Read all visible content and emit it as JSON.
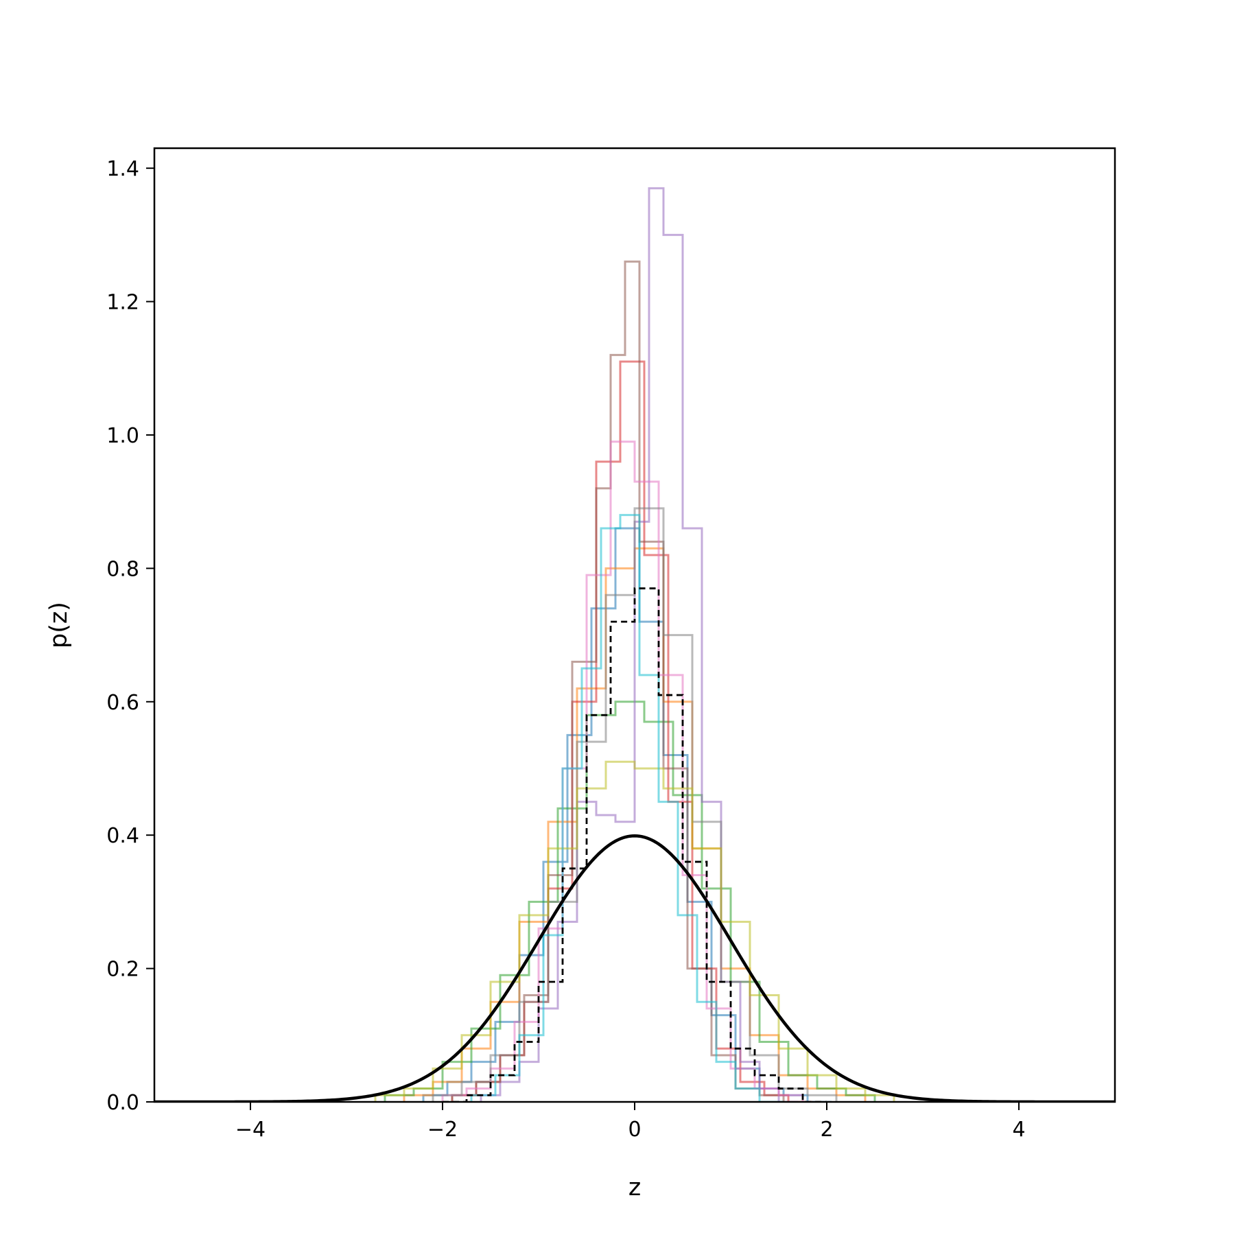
{
  "chart_data": {
    "type": "histogram",
    "title": "",
    "xlabel": "z",
    "ylabel": "p(z)",
    "xlim": [
      -5,
      5
    ],
    "ylim": [
      0,
      1.43
    ],
    "xticks": [
      -4,
      -2,
      0,
      2,
      4
    ],
    "xtick_labels": [
      "−4",
      "−2",
      "0",
      "2",
      "4"
    ],
    "yticks": [
      0.0,
      0.2,
      0.4,
      0.6,
      0.8,
      1.0,
      1.2,
      1.4
    ],
    "ytick_labels": [
      "0.0",
      "0.2",
      "0.4",
      "0.6",
      "0.8",
      "1.0",
      "1.2",
      "1.4"
    ],
    "grid": false,
    "legend": "none",
    "series": [
      {
        "style": "step-outline",
        "color": "#1f77b4",
        "edges": [
          -2.2,
          -1.95,
          -1.7,
          -1.45,
          -1.2,
          -0.95,
          -0.7,
          -0.45,
          -0.2,
          0.05,
          0.3,
          0.55,
          0.8,
          1.05,
          1.3,
          1.55,
          1.8,
          2.05
        ],
        "heights": [
          0.01,
          0.03,
          0.06,
          0.12,
          0.22,
          0.36,
          0.55,
          0.74,
          0.86,
          0.72,
          0.52,
          0.3,
          0.13,
          0.05,
          0.02,
          0.01,
          0.0
        ]
      },
      {
        "style": "step-outline",
        "color": "#ff7f0e",
        "edges": [
          -2.4,
          -2.1,
          -1.8,
          -1.5,
          -1.2,
          -0.9,
          -0.6,
          -0.3,
          0.0,
          0.3,
          0.6,
          0.9,
          1.2,
          1.5,
          1.8,
          2.1,
          2.4
        ],
        "heights": [
          0.01,
          0.03,
          0.08,
          0.15,
          0.27,
          0.42,
          0.62,
          0.8,
          0.83,
          0.6,
          0.38,
          0.2,
          0.1,
          0.04,
          0.02,
          0.01
        ]
      },
      {
        "style": "step-outline",
        "color": "#2ca02c",
        "edges": [
          -2.6,
          -2.3,
          -2.0,
          -1.7,
          -1.4,
          -1.1,
          -0.8,
          -0.5,
          -0.2,
          0.1,
          0.4,
          0.7,
          1.0,
          1.3,
          1.6,
          1.9,
          2.2,
          2.5
        ],
        "heights": [
          0.01,
          0.02,
          0.06,
          0.11,
          0.19,
          0.3,
          0.44,
          0.58,
          0.6,
          0.57,
          0.46,
          0.32,
          0.18,
          0.09,
          0.04,
          0.02,
          0.01
        ]
      },
      {
        "style": "step-outline",
        "color": "#d62728",
        "edges": [
          -1.9,
          -1.65,
          -1.4,
          -1.15,
          -0.9,
          -0.65,
          -0.4,
          -0.15,
          0.1,
          0.35,
          0.6,
          0.85,
          1.1,
          1.35,
          1.6,
          1.85
        ],
        "heights": [
          0.01,
          0.03,
          0.07,
          0.15,
          0.32,
          0.6,
          0.96,
          1.11,
          0.82,
          0.45,
          0.2,
          0.08,
          0.03,
          0.01,
          0.0
        ]
      },
      {
        "style": "step-outline",
        "color": "#9467bd",
        "edges": [
          -1.6,
          -1.4,
          -1.2,
          -1.0,
          -0.8,
          -0.6,
          -0.4,
          -0.2,
          0.0,
          0.15,
          0.3,
          0.5,
          0.7,
          0.9,
          1.1,
          1.3,
          1.5,
          1.7
        ],
        "heights": [
          0.01,
          0.03,
          0.06,
          0.14,
          0.27,
          0.45,
          0.43,
          0.42,
          0.87,
          1.37,
          1.3,
          0.86,
          0.45,
          0.18,
          0.06,
          0.02,
          0.0
        ]
      },
      {
        "style": "step-outline",
        "color": "#8c564b",
        "edges": [
          -1.9,
          -1.65,
          -1.4,
          -1.15,
          -0.9,
          -0.65,
          -0.4,
          -0.25,
          -0.1,
          0.05,
          0.3,
          0.55,
          0.8,
          1.05,
          1.3,
          1.55
        ],
        "heights": [
          0.01,
          0.03,
          0.07,
          0.16,
          0.34,
          0.66,
          0.92,
          1.12,
          1.26,
          0.84,
          0.5,
          0.2,
          0.07,
          0.02,
          0.01
        ]
      },
      {
        "style": "step-outline",
        "color": "#e377c2",
        "edges": [
          -2.0,
          -1.75,
          -1.5,
          -1.25,
          -1.0,
          -0.75,
          -0.5,
          -0.25,
          0.0,
          0.25,
          0.5,
          0.75,
          1.0,
          1.25,
          1.5,
          1.75
        ],
        "heights": [
          0.01,
          0.02,
          0.05,
          0.12,
          0.26,
          0.5,
          0.79,
          0.99,
          0.93,
          0.64,
          0.34,
          0.14,
          0.05,
          0.02,
          0.01
        ]
      },
      {
        "style": "step-outline",
        "color": "#7f7f7f",
        "edges": [
          -2.1,
          -1.8,
          -1.5,
          -1.2,
          -0.9,
          -0.6,
          -0.3,
          0.0,
          0.3,
          0.6,
          0.9,
          1.2,
          1.5,
          1.8,
          2.1
        ],
        "heights": [
          0.01,
          0.03,
          0.07,
          0.15,
          0.3,
          0.54,
          0.76,
          0.89,
          0.7,
          0.42,
          0.18,
          0.07,
          0.02,
          0.01
        ]
      },
      {
        "style": "step-outline",
        "color": "#bcbd22",
        "edges": [
          -2.7,
          -2.4,
          -2.1,
          -1.8,
          -1.5,
          -1.2,
          -0.9,
          -0.6,
          -0.3,
          0.0,
          0.3,
          0.6,
          0.9,
          1.2,
          1.5,
          1.8,
          2.1,
          2.4,
          2.7
        ],
        "heights": [
          0.01,
          0.02,
          0.05,
          0.1,
          0.18,
          0.28,
          0.38,
          0.47,
          0.51,
          0.5,
          0.47,
          0.38,
          0.27,
          0.16,
          0.08,
          0.04,
          0.02,
          0.01
        ]
      },
      {
        "style": "step-outline",
        "color": "#17becf",
        "edges": [
          -1.7,
          -1.45,
          -1.2,
          -0.95,
          -0.75,
          -0.55,
          -0.35,
          -0.15,
          0.05,
          0.25,
          0.45,
          0.65,
          0.85,
          1.05,
          1.3,
          1.55
        ],
        "heights": [
          0.01,
          0.04,
          0.1,
          0.25,
          0.5,
          0.65,
          0.86,
          0.88,
          0.64,
          0.45,
          0.28,
          0.15,
          0.06,
          0.02,
          0.0
        ]
      },
      {
        "style": "step-dashed",
        "color": "#000000",
        "edges": [
          -2.0,
          -1.75,
          -1.5,
          -1.25,
          -1.0,
          -0.75,
          -0.5,
          -0.25,
          0.0,
          0.25,
          0.5,
          0.75,
          1.0,
          1.25,
          1.5,
          1.75,
          2.0
        ],
        "heights": [
          0.0,
          0.01,
          0.04,
          0.09,
          0.18,
          0.35,
          0.58,
          0.72,
          0.77,
          0.61,
          0.36,
          0.18,
          0.08,
          0.04,
          0.02,
          0.0
        ]
      },
      {
        "style": "line",
        "color": "#000000",
        "function": "standard normal pdf",
        "x": [
          -5,
          -4,
          -3,
          -2.5,
          -2,
          -1.5,
          -1,
          -0.5,
          0,
          0.5,
          1,
          1.5,
          2,
          2.5,
          3,
          4,
          5
        ],
        "y": [
          0.0,
          0.0001,
          0.0044,
          0.0175,
          0.054,
          0.1295,
          0.242,
          0.3521,
          0.3989,
          0.3521,
          0.242,
          0.1295,
          0.054,
          0.0175,
          0.0044,
          0.0001,
          0.0
        ]
      }
    ]
  }
}
